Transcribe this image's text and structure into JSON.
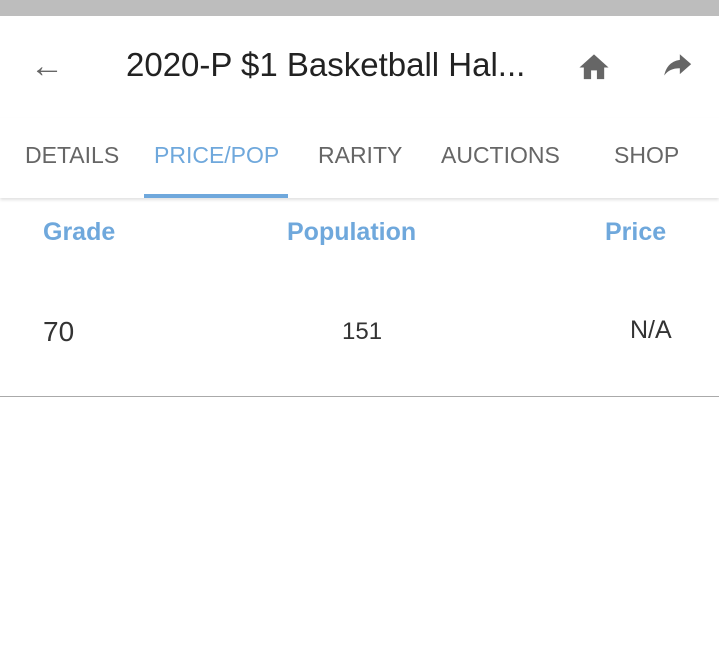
{
  "header": {
    "title": "2020-P $1 Basketball Hal..."
  },
  "tabs": [
    {
      "label": "DETAILS"
    },
    {
      "label": "PRICE/POP"
    },
    {
      "label": "RARITY"
    },
    {
      "label": "AUCTIONS"
    },
    {
      "label": "SHOP"
    }
  ],
  "active_tab": "PRICE/POP",
  "table": {
    "columns": [
      "Grade",
      "Population",
      "Price"
    ],
    "rows": [
      {
        "grade": "70",
        "population": "151",
        "price": "N/A"
      }
    ]
  },
  "colors": {
    "accent": "#6fa8dc",
    "icon": "#666666"
  }
}
